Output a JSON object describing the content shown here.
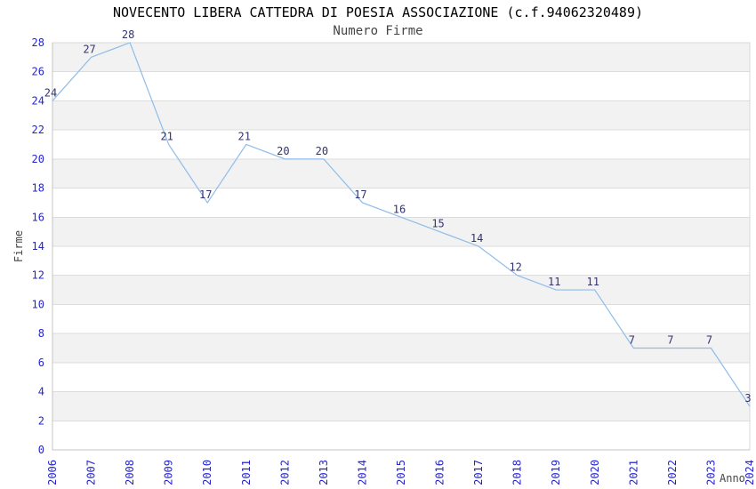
{
  "chart_data": {
    "type": "line",
    "title": "NOVECENTO LIBERA CATTEDRA DI POESIA ASSOCIAZIONE (c.f.94062320489)",
    "subtitle": "Numero Firme",
    "xlabel": "Anno",
    "ylabel": "Firme",
    "x": [
      "2006",
      "2007",
      "2008",
      "2009",
      "2010",
      "2011",
      "2012",
      "2013",
      "2014",
      "2015",
      "2016",
      "2017",
      "2018",
      "2019",
      "2020",
      "2021",
      "2022",
      "2023",
      "2024"
    ],
    "series": [
      {
        "name": "Numero Firme",
        "values": [
          24,
          27,
          28,
          21,
          17,
          21,
          20,
          20,
          17,
          16,
          15,
          14,
          12,
          11,
          11,
          7,
          7,
          7,
          3
        ]
      }
    ],
    "ylim": [
      0,
      28
    ],
    "ytick_step": 2,
    "grid": "horizontal-bands",
    "legend": "none",
    "point_labels": true,
    "colors": {
      "line": "#8fbce9",
      "tick_label": "#2424cc",
      "data_label": "#333370",
      "band_gray": "#f2f2f2",
      "band_white": "#ffffff",
      "gridline": "#dcdcdc",
      "border": "#d8d8d8",
      "axis": "#c4c4c4",
      "title": "#000000",
      "subtitle": "#444444",
      "axis_label": "#444444"
    }
  }
}
